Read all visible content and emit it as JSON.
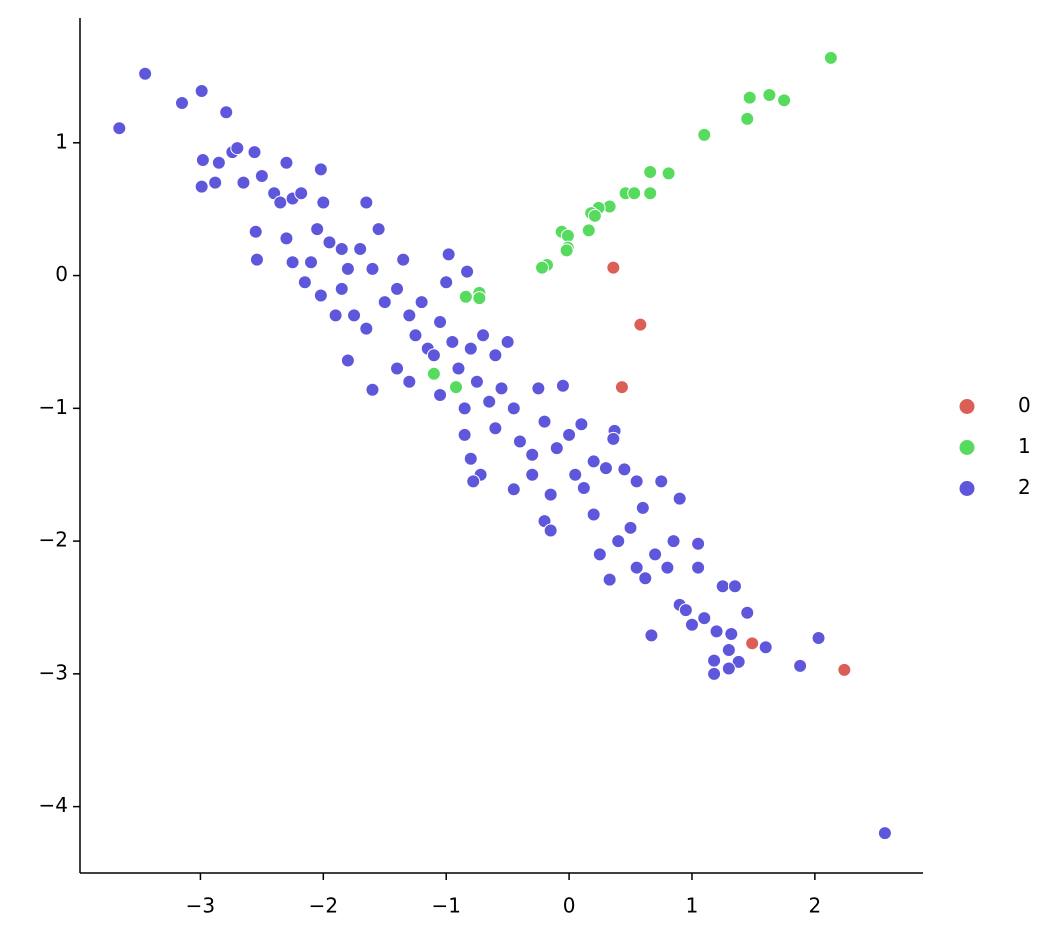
{
  "chart_data": {
    "type": "scatter",
    "xlim": [
      -3.98,
      2.88
    ],
    "ylim": [
      -4.5,
      1.94
    ],
    "xticks": [
      {
        "value": -3,
        "label": "−3"
      },
      {
        "value": -2,
        "label": "−2"
      },
      {
        "value": -1,
        "label": "−1"
      },
      0,
      1,
      2
    ],
    "yticks": [
      {
        "value": -4,
        "label": "−4"
      },
      {
        "value": -3,
        "label": "−3"
      },
      {
        "value": -2,
        "label": "−2"
      },
      {
        "value": -1,
        "label": "−1"
      },
      0,
      1
    ],
    "legend": "right",
    "series": [
      {
        "name": "0",
        "color": "#db5f57",
        "x": [
          0.36,
          0.58,
          0.43,
          1.49,
          2.24
        ],
        "values": [
          0.06,
          -0.37,
          -0.84,
          -2.77,
          -2.97
        ]
      },
      {
        "name": "1",
        "color": "#57db5f",
        "x": [
          2.13,
          1.63,
          1.47,
          1.75,
          1.45,
          1.1,
          0.66,
          0.81,
          0.66,
          0.46,
          0.53,
          0.33,
          0.24,
          0.18,
          0.21,
          0.16,
          -0.06,
          -0.01,
          -0.01,
          -0.02,
          -0.18,
          -0.22,
          -0.84,
          -0.73,
          -0.73,
          -1.1,
          -0.92
        ],
        "values": [
          1.64,
          1.36,
          1.34,
          1.32,
          1.18,
          1.06,
          0.78,
          0.77,
          0.62,
          0.62,
          0.62,
          0.52,
          0.51,
          0.47,
          0.45,
          0.34,
          0.33,
          0.3,
          0.21,
          0.19,
          0.08,
          0.06,
          -0.16,
          -0.13,
          -0.17,
          -0.74,
          -0.84
        ]
      },
      {
        "name": "2",
        "color": "#5f57db",
        "x": [
          -3.66,
          -3.45,
          -3.15,
          -2.99,
          -2.79,
          -2.85,
          -2.74,
          -2.7,
          -2.56,
          -2.98,
          -2.99,
          -2.88,
          -2.65,
          -2.5,
          -2.55,
          -2.54,
          -2.3,
          -2.4,
          -2.35,
          -2.25,
          -2.18,
          -2.3,
          -2.25,
          -2.15,
          -2.02,
          -2.0,
          -2.05,
          -1.95,
          -2.1,
          -2.02,
          -1.9,
          -1.85,
          -1.8,
          -1.85,
          -1.65,
          -1.55,
          -1.7,
          -1.6,
          -1.75,
          -1.65,
          -1.8,
          -1.6,
          -1.5,
          -1.4,
          -1.35,
          -1.3,
          -1.2,
          -1.25,
          -1.15,
          -1.4,
          -1.3,
          -0.98,
          -0.83,
          -1.0,
          -1.05,
          -0.95,
          -1.1,
          -0.9,
          -1.05,
          -0.85,
          -0.8,
          -0.7,
          -0.6,
          -0.75,
          -0.65,
          -0.55,
          -0.5,
          -0.85,
          -0.8,
          -0.72,
          -0.78,
          -0.6,
          -0.45,
          -0.4,
          -0.3,
          -0.45,
          -0.3,
          -0.25,
          -0.05,
          -0.2,
          -0.1,
          0.0,
          0.05,
          -0.15,
          -0.2,
          -0.15,
          0.1,
          0.12,
          0.2,
          0.3,
          0.37,
          0.36,
          0.2,
          0.25,
          0.33,
          0.4,
          0.45,
          0.55,
          0.5,
          0.55,
          0.62,
          0.6,
          0.67,
          0.7,
          0.75,
          0.8,
          0.85,
          0.9,
          0.9,
          0.95,
          1.0,
          1.05,
          1.05,
          1.1,
          1.2,
          1.18,
          1.18,
          1.25,
          1.32,
          1.3,
          1.35,
          1.38,
          1.3,
          1.45,
          1.6,
          1.88,
          2.03,
          2.57
        ],
        "values": [
          1.11,
          1.52,
          1.3,
          1.39,
          1.23,
          0.85,
          0.93,
          0.96,
          0.93,
          0.87,
          0.67,
          0.7,
          0.7,
          0.75,
          0.33,
          0.12,
          0.85,
          0.62,
          0.55,
          0.58,
          0.62,
          0.28,
          0.1,
          -0.05,
          0.8,
          0.55,
          0.35,
          0.25,
          0.1,
          -0.15,
          -0.3,
          0.2,
          0.05,
          -0.1,
          0.55,
          0.35,
          0.2,
          0.05,
          -0.3,
          -0.4,
          -0.64,
          -0.86,
          -0.2,
          -0.1,
          0.12,
          -0.3,
          -0.2,
          -0.45,
          -0.55,
          -0.7,
          -0.8,
          0.16,
          0.03,
          -0.05,
          -0.35,
          -0.5,
          -0.6,
          -0.7,
          -0.9,
          -1.0,
          -0.55,
          -0.45,
          -0.6,
          -0.8,
          -0.95,
          -0.85,
          -0.5,
          -1.2,
          -1.38,
          -1.5,
          -1.55,
          -1.15,
          -1.0,
          -1.25,
          -1.35,
          -1.61,
          -1.5,
          -0.85,
          -0.83,
          -1.1,
          -1.3,
          -1.2,
          -1.5,
          -1.65,
          -1.85,
          -1.92,
          -1.12,
          -1.6,
          -1.4,
          -1.45,
          -1.17,
          -1.23,
          -1.8,
          -2.1,
          -2.29,
          -2.0,
          -1.46,
          -1.55,
          -1.9,
          -2.2,
          -2.28,
          -1.75,
          -2.71,
          -2.1,
          -1.55,
          -2.2,
          -2.0,
          -1.68,
          -2.48,
          -2.52,
          -2.63,
          -2.02,
          -2.2,
          -2.58,
          -2.68,
          -2.9,
          -3.0,
          -2.34,
          -2.7,
          -2.82,
          -2.34,
          -2.91,
          -2.96,
          -2.54,
          -2.8,
          -2.94,
          -2.73,
          -4.2
        ]
      }
    ]
  }
}
